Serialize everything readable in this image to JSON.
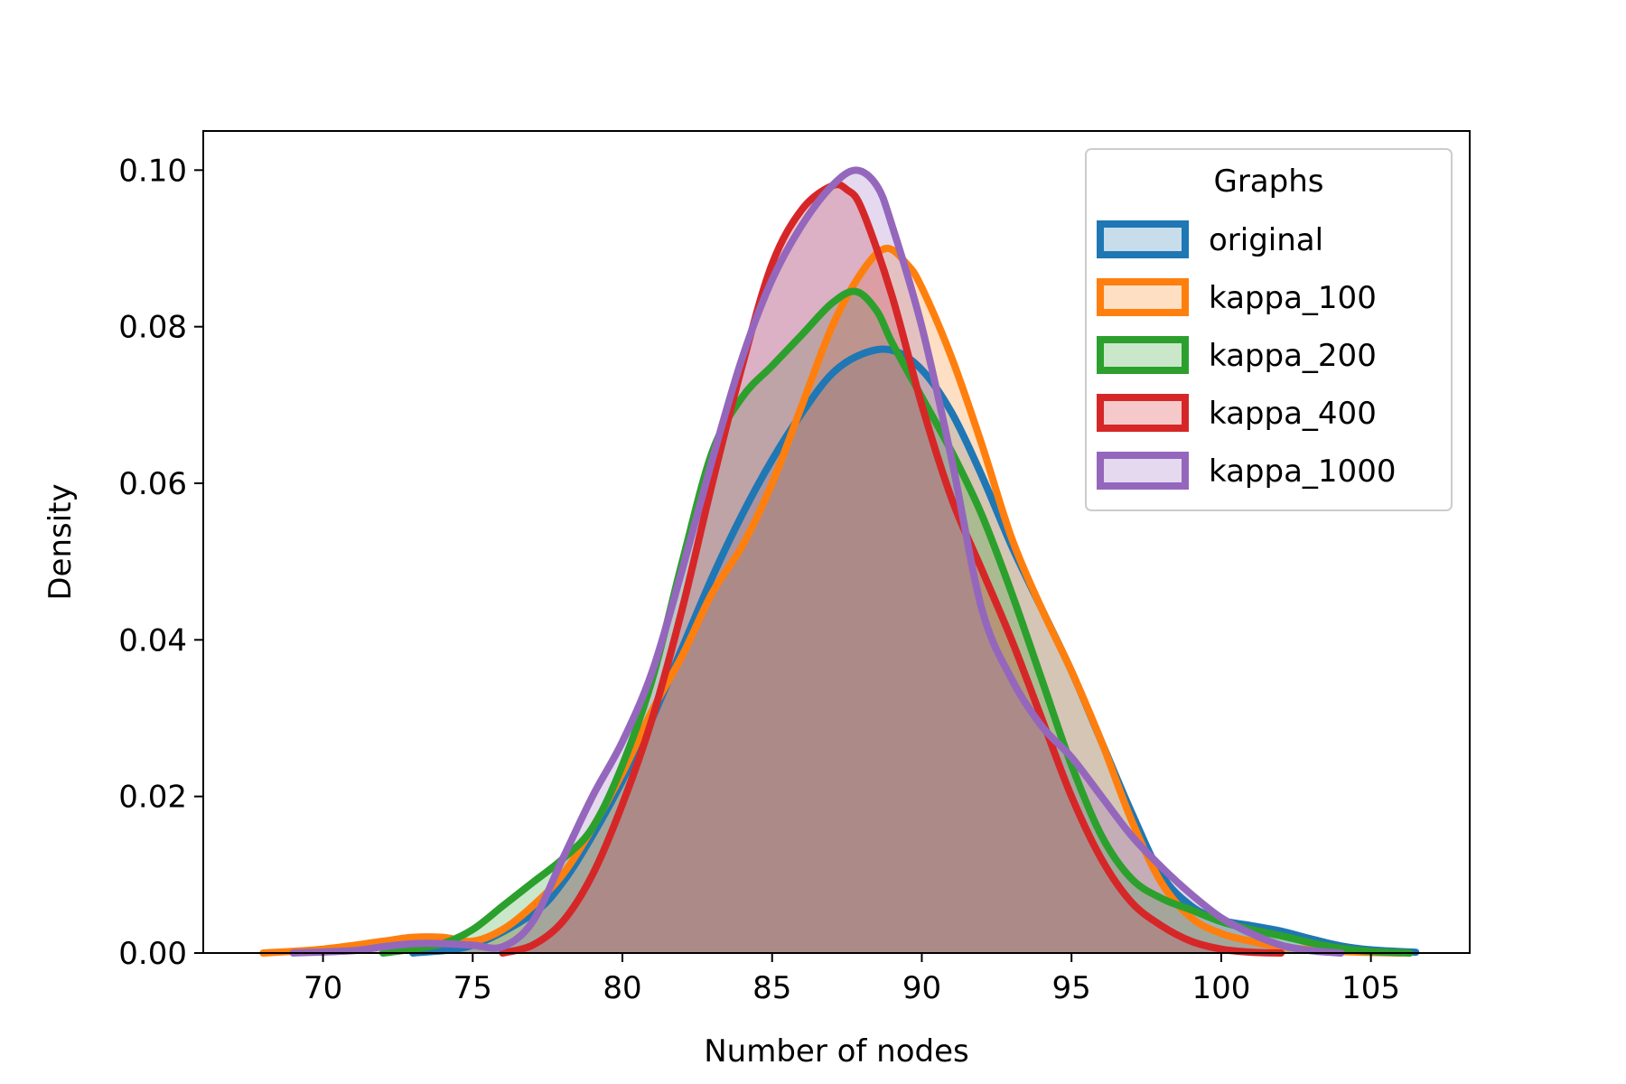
{
  "chart_data": {
    "type": "area",
    "title": "",
    "xlabel": "Number of nodes",
    "ylabel": "Density",
    "xlim": [
      66,
      108.3
    ],
    "ylim": [
      0,
      0.105
    ],
    "xticks": [
      70,
      75,
      80,
      85,
      90,
      95,
      100,
      105
    ],
    "xtick_labels": [
      "70",
      "75",
      "80",
      "85",
      "90",
      "95",
      "100",
      "105"
    ],
    "yticks": [
      0,
      0.02,
      0.04,
      0.06,
      0.08,
      0.1
    ],
    "ytick_labels": [
      "0.00",
      "0.02",
      "0.04",
      "0.06",
      "0.08",
      "0.10"
    ],
    "grid": false,
    "legend": {
      "title": "Graphs",
      "placement": "top-right"
    },
    "series": [
      {
        "name": "original",
        "color": "#1f77b4",
        "points": [
          [
            73,
            0
          ],
          [
            75,
            0.001
          ],
          [
            77,
            0.005
          ],
          [
            78,
            0.009
          ],
          [
            79,
            0.015
          ],
          [
            80,
            0.022
          ],
          [
            81,
            0.03
          ],
          [
            82,
            0.039
          ],
          [
            83,
            0.048
          ],
          [
            84,
            0.056
          ],
          [
            85,
            0.063
          ],
          [
            86,
            0.069
          ],
          [
            87,
            0.074
          ],
          [
            88,
            0.0765
          ],
          [
            89,
            0.077
          ],
          [
            90,
            0.0745
          ],
          [
            91,
            0.069
          ],
          [
            92,
            0.061
          ],
          [
            93,
            0.052
          ],
          [
            94,
            0.044
          ],
          [
            95,
            0.036
          ],
          [
            96,
            0.027
          ],
          [
            97,
            0.018
          ],
          [
            98,
            0.01
          ],
          [
            99,
            0.006
          ],
          [
            100,
            0.0042
          ],
          [
            101,
            0.0035
          ],
          [
            102,
            0.0028
          ],
          [
            103,
            0.0018
          ],
          [
            104,
            0.0009
          ],
          [
            105,
            0.0004
          ],
          [
            106.5,
            0.0001
          ]
        ]
      },
      {
        "name": "kappa_100",
        "color": "#ff7f0e",
        "points": [
          [
            68,
            0
          ],
          [
            70,
            0.0005
          ],
          [
            72,
            0.0015
          ],
          [
            73,
            0.002
          ],
          [
            74,
            0.002
          ],
          [
            75,
            0.0015
          ],
          [
            76,
            0.003
          ],
          [
            77,
            0.006
          ],
          [
            78,
            0.01
          ],
          [
            79,
            0.016
          ],
          [
            80,
            0.023
          ],
          [
            81,
            0.031
          ],
          [
            82,
            0.038
          ],
          [
            83,
            0.046
          ],
          [
            84,
            0.052
          ],
          [
            85,
            0.06
          ],
          [
            86,
            0.07
          ],
          [
            87,
            0.08
          ],
          [
            88,
            0.087
          ],
          [
            88.8,
            0.09
          ],
          [
            89.5,
            0.088
          ],
          [
            90,
            0.085
          ],
          [
            91,
            0.076
          ],
          [
            92,
            0.065
          ],
          [
            93,
            0.053
          ],
          [
            94,
            0.044
          ],
          [
            95,
            0.036
          ],
          [
            96,
            0.027
          ],
          [
            97,
            0.017
          ],
          [
            98,
            0.009
          ],
          [
            99,
            0.0045
          ],
          [
            100,
            0.0025
          ],
          [
            101,
            0.0015
          ],
          [
            102,
            0.0008
          ],
          [
            104,
            0.0002
          ],
          [
            106,
            0
          ]
        ]
      },
      {
        "name": "kappa_200",
        "color": "#2ca02c",
        "points": [
          [
            72,
            0
          ],
          [
            73,
            0.0005
          ],
          [
            74,
            0.0012
          ],
          [
            75,
            0.003
          ],
          [
            76,
            0.006
          ],
          [
            77,
            0.009
          ],
          [
            78,
            0.012
          ],
          [
            79,
            0.016
          ],
          [
            80,
            0.024
          ],
          [
            81,
            0.035
          ],
          [
            82,
            0.05
          ],
          [
            83,
            0.064
          ],
          [
            84,
            0.071
          ],
          [
            85,
            0.075
          ],
          [
            86,
            0.079
          ],
          [
            87,
            0.083
          ],
          [
            87.8,
            0.0845
          ],
          [
            88.5,
            0.082
          ],
          [
            89,
            0.078
          ],
          [
            90,
            0.071
          ],
          [
            91,
            0.064
          ],
          [
            92,
            0.056
          ],
          [
            93,
            0.046
          ],
          [
            94,
            0.035
          ],
          [
            95,
            0.024
          ],
          [
            96,
            0.015
          ],
          [
            97,
            0.0095
          ],
          [
            98,
            0.007
          ],
          [
            99,
            0.0055
          ],
          [
            100,
            0.004
          ],
          [
            101,
            0.003
          ],
          [
            102,
            0.0022
          ],
          [
            103,
            0.0013
          ],
          [
            104,
            0.0006
          ],
          [
            105,
            0.0002
          ],
          [
            106.3,
            0
          ]
        ]
      },
      {
        "name": "kappa_400",
        "color": "#d62728",
        "points": [
          [
            76,
            0
          ],
          [
            77,
            0.001
          ],
          [
            78,
            0.004
          ],
          [
            79,
            0.01
          ],
          [
            80,
            0.019
          ],
          [
            81,
            0.03
          ],
          [
            82,
            0.044
          ],
          [
            83,
            0.06
          ],
          [
            84,
            0.075
          ],
          [
            85,
            0.088
          ],
          [
            86,
            0.095
          ],
          [
            87,
            0.098
          ],
          [
            87.5,
            0.0975
          ],
          [
            88,
            0.095
          ],
          [
            89,
            0.084
          ],
          [
            90,
            0.07
          ],
          [
            91,
            0.058
          ],
          [
            92,
            0.049
          ],
          [
            93,
            0.04
          ],
          [
            94,
            0.03
          ],
          [
            95,
            0.02
          ],
          [
            96,
            0.012
          ],
          [
            97,
            0.0065
          ],
          [
            98,
            0.0035
          ],
          [
            99,
            0.0015
          ],
          [
            100,
            0.0005
          ],
          [
            101,
            0.0001
          ],
          [
            102,
            0
          ]
        ]
      },
      {
        "name": "kappa_1000",
        "color": "#9467bd",
        "points": [
          [
            69,
            0
          ],
          [
            71,
            0.0003
          ],
          [
            72,
            0.0008
          ],
          [
            73,
            0.0012
          ],
          [
            74,
            0.0012
          ],
          [
            75,
            0.001
          ],
          [
            76,
            0.0008
          ],
          [
            77,
            0.004
          ],
          [
            78,
            0.012
          ],
          [
            79,
            0.02
          ],
          [
            80,
            0.027
          ],
          [
            81,
            0.036
          ],
          [
            82,
            0.049
          ],
          [
            83,
            0.063
          ],
          [
            84,
            0.076
          ],
          [
            85,
            0.086
          ],
          [
            86,
            0.093
          ],
          [
            87,
            0.098
          ],
          [
            87.8,
            0.1
          ],
          [
            88.5,
            0.098
          ],
          [
            89,
            0.093
          ],
          [
            90,
            0.08
          ],
          [
            91,
            0.063
          ],
          [
            92,
            0.044
          ],
          [
            93,
            0.035
          ],
          [
            94,
            0.029
          ],
          [
            95,
            0.025
          ],
          [
            96,
            0.02
          ],
          [
            97,
            0.015
          ],
          [
            98,
            0.011
          ],
          [
            99,
            0.0075
          ],
          [
            100,
            0.0045
          ],
          [
            101,
            0.0025
          ],
          [
            102,
            0.001
          ],
          [
            103,
            0.0003
          ],
          [
            104,
            0
          ]
        ]
      }
    ]
  }
}
